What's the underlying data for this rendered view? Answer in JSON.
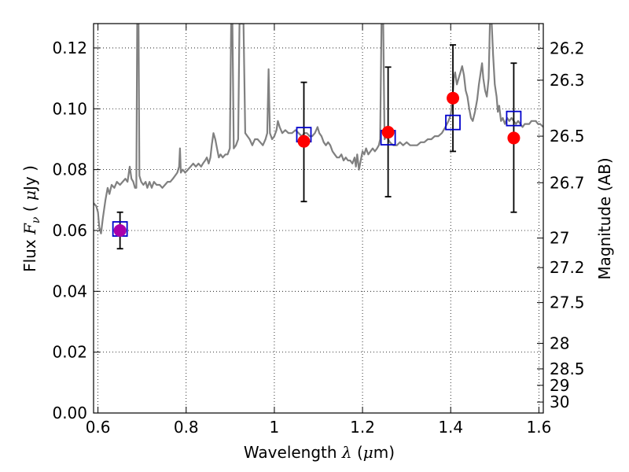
{
  "chart_data": {
    "type": "scatter",
    "xlabel": "Wavelength  λ (μm)",
    "ylabel_left": "Flux  F_ν  ( μJy )",
    "ylabel_right": "Magnitude (AB)",
    "xlim": [
      0.59,
      1.61
    ],
    "ylim": [
      0.0,
      0.128
    ],
    "grid": true,
    "x_ticks": [
      {
        "value": 0.6,
        "label": "0.6"
      },
      {
        "value": 0.8,
        "label": "0.8"
      },
      {
        "value": 1.0,
        "label": "1"
      },
      {
        "value": 1.2,
        "label": "1.2"
      },
      {
        "value": 1.4,
        "label": "1.4"
      },
      {
        "value": 1.6,
        "label": "1.6"
      }
    ],
    "y_ticks": [
      {
        "value": 0.0,
        "label": "0.00"
      },
      {
        "value": 0.02,
        "label": "0.02"
      },
      {
        "value": 0.04,
        "label": "0.04"
      },
      {
        "value": 0.06,
        "label": "0.06"
      },
      {
        "value": 0.08,
        "label": "0.08"
      },
      {
        "value": 0.1,
        "label": "0.10"
      },
      {
        "value": 0.12,
        "label": "0.12"
      }
    ],
    "magnitude_ticks": [
      {
        "flux": 0.1199,
        "label": "26.2"
      },
      {
        "flux": 0.1094,
        "label": "26.3"
      },
      {
        "flux": 0.091,
        "label": "26.5"
      },
      {
        "flux": 0.0757,
        "label": "26.7"
      },
      {
        "flux": 0.0575,
        "label": "27"
      },
      {
        "flux": 0.0478,
        "label": "27.2"
      },
      {
        "flux": 0.0363,
        "label": "27.5"
      },
      {
        "flux": 0.0229,
        "label": "28"
      },
      {
        "flux": 0.0145,
        "label": "28.5"
      },
      {
        "flux": 0.0091,
        "label": "29"
      },
      {
        "flux": 0.0036,
        "label": "30"
      }
    ],
    "model_spectrum": {
      "color": "#808080",
      "points": [
        [
          0.59,
          0.069
        ],
        [
          0.596,
          0.068
        ],
        [
          0.6,
          0.066
        ],
        [
          0.603,
          0.061
        ],
        [
          0.607,
          0.059
        ],
        [
          0.611,
          0.064
        ],
        [
          0.617,
          0.07
        ],
        [
          0.622,
          0.074
        ],
        [
          0.626,
          0.072
        ],
        [
          0.631,
          0.075
        ],
        [
          0.637,
          0.074
        ],
        [
          0.643,
          0.076
        ],
        [
          0.65,
          0.075
        ],
        [
          0.656,
          0.076
        ],
        [
          0.662,
          0.077
        ],
        [
          0.667,
          0.076
        ],
        [
          0.672,
          0.081
        ],
        [
          0.676,
          0.077
        ],
        [
          0.68,
          0.076
        ],
        [
          0.684,
          0.074
        ],
        [
          0.687,
          0.074
        ],
        [
          0.689,
          0.128
        ],
        [
          0.692,
          0.128
        ],
        [
          0.694,
          0.078
        ],
        [
          0.698,
          0.076
        ],
        [
          0.703,
          0.075
        ],
        [
          0.708,
          0.076
        ],
        [
          0.712,
          0.074
        ],
        [
          0.717,
          0.076
        ],
        [
          0.722,
          0.074
        ],
        [
          0.727,
          0.076
        ],
        [
          0.733,
          0.075
        ],
        [
          0.74,
          0.075
        ],
        [
          0.746,
          0.074
        ],
        [
          0.752,
          0.075
        ],
        [
          0.758,
          0.076
        ],
        [
          0.764,
          0.076
        ],
        [
          0.77,
          0.077
        ],
        [
          0.775,
          0.078
        ],
        [
          0.78,
          0.079
        ],
        [
          0.784,
          0.081
        ],
        [
          0.786,
          0.087
        ],
        [
          0.788,
          0.079
        ],
        [
          0.792,
          0.08
        ],
        [
          0.798,
          0.079
        ],
        [
          0.804,
          0.08
        ],
        [
          0.81,
          0.081
        ],
        [
          0.816,
          0.082
        ],
        [
          0.822,
          0.081
        ],
        [
          0.828,
          0.082
        ],
        [
          0.834,
          0.081
        ],
        [
          0.838,
          0.082
        ],
        [
          0.843,
          0.083
        ],
        [
          0.847,
          0.084
        ],
        [
          0.851,
          0.082
        ],
        [
          0.855,
          0.084
        ],
        [
          0.858,
          0.088
        ],
        [
          0.862,
          0.092
        ],
        [
          0.866,
          0.09
        ],
        [
          0.87,
          0.087
        ],
        [
          0.874,
          0.084
        ],
        [
          0.878,
          0.085
        ],
        [
          0.883,
          0.084
        ],
        [
          0.889,
          0.085
        ],
        [
          0.894,
          0.085
        ],
        [
          0.899,
          0.087
        ],
        [
          0.902,
          0.128
        ],
        [
          0.905,
          0.128
        ],
        [
          0.908,
          0.087
        ],
        [
          0.913,
          0.088
        ],
        [
          0.918,
          0.09
        ],
        [
          0.921,
          0.128
        ],
        [
          0.926,
          0.128
        ],
        [
          0.93,
          0.128
        ],
        [
          0.934,
          0.092
        ],
        [
          0.939,
          0.091
        ],
        [
          0.944,
          0.09
        ],
        [
          0.95,
          0.088
        ],
        [
          0.956,
          0.09
        ],
        [
          0.962,
          0.09
        ],
        [
          0.968,
          0.089
        ],
        [
          0.974,
          0.088
        ],
        [
          0.98,
          0.09
        ],
        [
          0.984,
          0.092
        ],
        [
          0.987,
          0.113
        ],
        [
          0.99,
          0.092
        ],
        [
          0.995,
          0.09
        ],
        [
          1.0,
          0.091
        ],
        [
          1.005,
          0.093
        ],
        [
          1.008,
          0.096
        ],
        [
          1.012,
          0.094
        ],
        [
          1.018,
          0.092
        ],
        [
          1.025,
          0.093
        ],
        [
          1.032,
          0.092
        ],
        [
          1.04,
          0.092
        ],
        [
          1.048,
          0.093
        ],
        [
          1.055,
          0.092
        ],
        [
          1.062,
          0.091
        ],
        [
          1.068,
          0.092
        ],
        [
          1.074,
          0.092
        ],
        [
          1.08,
          0.091
        ],
        [
          1.086,
          0.091
        ],
        [
          1.092,
          0.092
        ],
        [
          1.098,
          0.094
        ],
        [
          1.102,
          0.092
        ],
        [
          1.107,
          0.091
        ],
        [
          1.112,
          0.089
        ],
        [
          1.117,
          0.088
        ],
        [
          1.122,
          0.089
        ],
        [
          1.127,
          0.088
        ],
        [
          1.132,
          0.086
        ],
        [
          1.137,
          0.085
        ],
        [
          1.142,
          0.084
        ],
        [
          1.147,
          0.084
        ],
        [
          1.152,
          0.085
        ],
        [
          1.157,
          0.083
        ],
        [
          1.162,
          0.084
        ],
        [
          1.167,
          0.083
        ],
        [
          1.172,
          0.083
        ],
        [
          1.177,
          0.082
        ],
        [
          1.182,
          0.084
        ],
        [
          1.185,
          0.081
        ],
        [
          1.188,
          0.085
        ],
        [
          1.192,
          0.08
        ],
        [
          1.196,
          0.083
        ],
        [
          1.2,
          0.086
        ],
        [
          1.204,
          0.085
        ],
        [
          1.208,
          0.087
        ],
        [
          1.213,
          0.085
        ],
        [
          1.218,
          0.086
        ],
        [
          1.223,
          0.087
        ],
        [
          1.228,
          0.086
        ],
        [
          1.233,
          0.087
        ],
        [
          1.237,
          0.088
        ],
        [
          1.24,
          0.09
        ],
        [
          1.243,
          0.128
        ],
        [
          1.247,
          0.128
        ],
        [
          1.25,
          0.09
        ],
        [
          1.255,
          0.091
        ],
        [
          1.262,
          0.089
        ],
        [
          1.27,
          0.088
        ],
        [
          1.278,
          0.088
        ],
        [
          1.285,
          0.089
        ],
        [
          1.292,
          0.088
        ],
        [
          1.3,
          0.089
        ],
        [
          1.308,
          0.088
        ],
        [
          1.316,
          0.088
        ],
        [
          1.324,
          0.088
        ],
        [
          1.332,
          0.089
        ],
        [
          1.34,
          0.089
        ],
        [
          1.348,
          0.09
        ],
        [
          1.356,
          0.09
        ],
        [
          1.364,
          0.091
        ],
        [
          1.372,
          0.091
        ],
        [
          1.38,
          0.092
        ],
        [
          1.388,
          0.094
        ],
        [
          1.395,
          0.096
        ],
        [
          1.4,
          0.098
        ],
        [
          1.404,
          0.103
        ],
        [
          1.407,
          0.11
        ],
        [
          1.41,
          0.112
        ],
        [
          1.414,
          0.108
        ],
        [
          1.418,
          0.11
        ],
        [
          1.422,
          0.112
        ],
        [
          1.426,
          0.114
        ],
        [
          1.43,
          0.111
        ],
        [
          1.434,
          0.106
        ],
        [
          1.438,
          0.104
        ],
        [
          1.442,
          0.1
        ],
        [
          1.446,
          0.097
        ],
        [
          1.45,
          0.096
        ],
        [
          1.455,
          0.099
        ],
        [
          1.46,
          0.103
        ],
        [
          1.464,
          0.108
        ],
        [
          1.468,
          0.112
        ],
        [
          1.471,
          0.115
        ],
        [
          1.474,
          0.11
        ],
        [
          1.478,
          0.106
        ],
        [
          1.482,
          0.104
        ],
        [
          1.486,
          0.11
        ],
        [
          1.489,
          0.128
        ],
        [
          1.493,
          0.128
        ],
        [
          1.496,
          0.118
        ],
        [
          1.5,
          0.108
        ],
        [
          1.504,
          0.104
        ],
        [
          1.507,
          0.099
        ],
        [
          1.51,
          0.101
        ],
        [
          1.514,
          0.096
        ],
        [
          1.518,
          0.097
        ],
        [
          1.523,
          0.095
        ],
        [
          1.528,
          0.097
        ],
        [
          1.533,
          0.096
        ],
        [
          1.538,
          0.097
        ],
        [
          1.543,
          0.096
        ],
        [
          1.548,
          0.095
        ],
        [
          1.553,
          0.096
        ],
        [
          1.558,
          0.095
        ],
        [
          1.563,
          0.094
        ],
        [
          1.568,
          0.095
        ],
        [
          1.573,
          0.095
        ],
        [
          1.578,
          0.095
        ],
        [
          1.583,
          0.096
        ],
        [
          1.588,
          0.096
        ],
        [
          1.593,
          0.096
        ],
        [
          1.598,
          0.095
        ],
        [
          1.603,
          0.095
        ],
        [
          1.61,
          0.094
        ]
      ]
    },
    "model_photometry": {
      "marker": "open-square",
      "color": "#0000cc",
      "points": [
        {
          "x": 0.65,
          "y": 0.0605
        },
        {
          "x": 1.067,
          "y": 0.0915
        },
        {
          "x": 1.258,
          "y": 0.0905
        },
        {
          "x": 1.405,
          "y": 0.0955
        },
        {
          "x": 1.543,
          "y": 0.0968
        }
      ]
    },
    "observed_photometry": {
      "marker": "filled-circle",
      "color": "#ff0000",
      "first_point_color": "#aa00aa",
      "points": [
        {
          "x": 0.65,
          "y": 0.06,
          "err_low": 0.054,
          "err_high": 0.066
        },
        {
          "x": 1.067,
          "y": 0.0893,
          "err_low": 0.0695,
          "err_high": 0.1087
        },
        {
          "x": 1.258,
          "y": 0.0923,
          "err_low": 0.0711,
          "err_high": 0.1137
        },
        {
          "x": 1.405,
          "y": 0.1035,
          "err_low": 0.086,
          "err_high": 0.121
        },
        {
          "x": 1.543,
          "y": 0.0904,
          "err_low": 0.066,
          "err_high": 0.115
        }
      ]
    }
  }
}
